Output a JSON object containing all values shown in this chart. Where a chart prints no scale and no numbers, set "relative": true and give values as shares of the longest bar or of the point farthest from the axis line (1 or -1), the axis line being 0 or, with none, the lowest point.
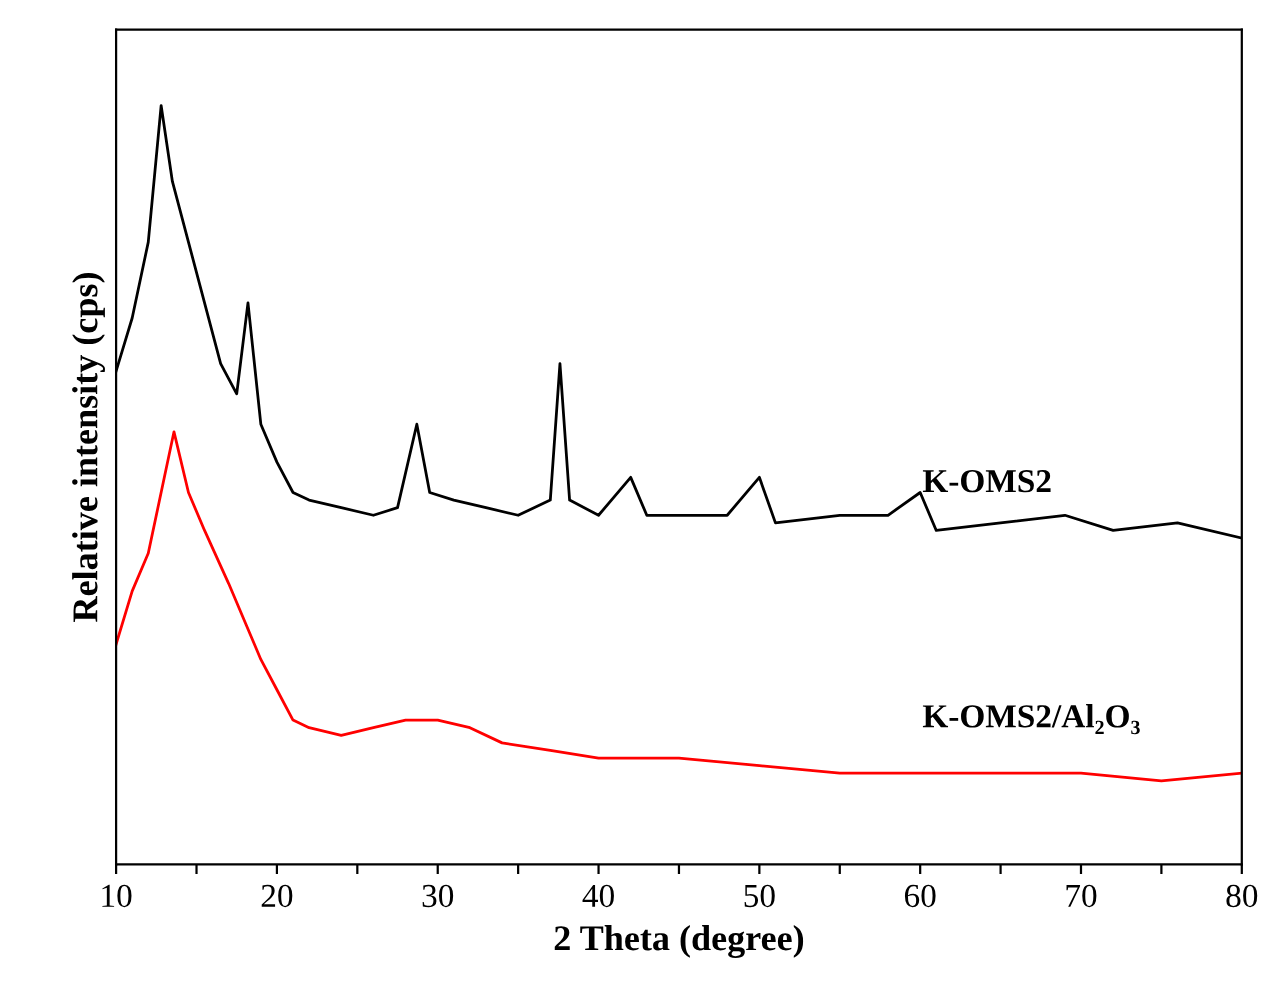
{
  "chart_data": {
    "type": "line",
    "relative": true,
    "xlabel": "2 Theta (degree)",
    "ylabel": "Relative intensity (cps)",
    "xlim": [
      10,
      80
    ],
    "xticks": [
      10,
      {
        "value": 15,
        "label": null
      },
      20,
      {
        "value": 25,
        "label": null
      },
      30,
      {
        "value": 35,
        "label": null
      },
      40,
      {
        "value": 45,
        "label": null
      },
      50,
      {
        "value": 55,
        "label": null
      },
      60,
      {
        "value": 65,
        "label": null
      },
      70,
      {
        "value": 75,
        "label": null
      },
      80
    ],
    "tick_labels": "x",
    "grid": false,
    "legend": false,
    "series": [
      {
        "name": "K-OMS2",
        "color": "#000000",
        "x": [
          10,
          11,
          12,
          12.8,
          13.5,
          14.5,
          15.5,
          16.5,
          17.5,
          18.2,
          19,
          20,
          21,
          22,
          24,
          26,
          27.5,
          28.7,
          29.5,
          31,
          33,
          35,
          37,
          37.6,
          38.2,
          40,
          42,
          43,
          45,
          48,
          50,
          51,
          55,
          58,
          60,
          61,
          65,
          69,
          72,
          76,
          80
        ],
        "values": [
          0.65,
          0.72,
          0.82,
          1.0,
          0.9,
          0.82,
          0.74,
          0.66,
          0.62,
          0.74,
          0.58,
          0.53,
          0.49,
          0.48,
          0.47,
          0.46,
          0.47,
          0.58,
          0.49,
          0.48,
          0.47,
          0.46,
          0.48,
          0.66,
          0.48,
          0.46,
          0.51,
          0.46,
          0.46,
          0.46,
          0.51,
          0.45,
          0.46,
          0.46,
          0.49,
          0.44,
          0.45,
          0.46,
          0.44,
          0.45,
          0.43
        ]
      },
      {
        "name": "K-OMS2/Al₂O₃",
        "color": "#ff0000",
        "x": [
          10,
          11,
          12,
          13,
          13.6,
          14.5,
          15.5,
          17,
          18,
          19,
          20,
          21,
          22,
          24,
          26,
          28,
          30,
          32,
          34,
          37,
          40,
          45,
          50,
          55,
          60,
          65,
          70,
          75,
          80
        ],
        "values": [
          0.29,
          0.36,
          0.41,
          0.51,
          0.57,
          0.49,
          0.44,
          0.37,
          0.32,
          0.27,
          0.23,
          0.19,
          0.18,
          0.17,
          0.18,
          0.19,
          0.19,
          0.18,
          0.16,
          0.15,
          0.14,
          0.14,
          0.13,
          0.12,
          0.12,
          0.12,
          0.12,
          0.11,
          0.12
        ]
      }
    ]
  }
}
